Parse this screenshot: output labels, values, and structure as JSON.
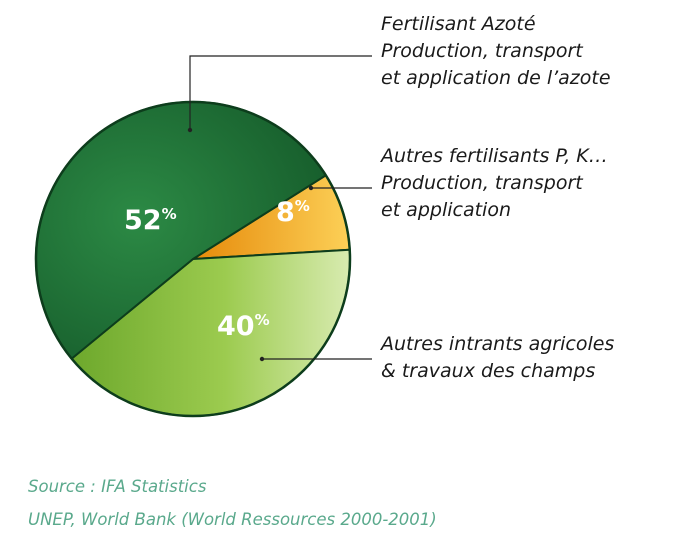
{
  "chart_data": {
    "type": "pie",
    "slices": [
      {
        "value": 52,
        "value_label": "52",
        "pct_sign": "%",
        "color": "#1e6b35",
        "label_lines": [
          "Fertilisant Azoté",
          "Production, transport",
          "et application de l’azote"
        ]
      },
      {
        "value": 8,
        "value_label": "8",
        "pct_sign": "%",
        "color": "#f0a416",
        "label_lines": [
          "Autres fertilisants P, K…",
          "Production, transport",
          "et application"
        ]
      },
      {
        "value": 40,
        "value_label": "40",
        "pct_sign": "%",
        "color": "#8cbd3c",
        "label_lines": [
          "Autres intrants agricoles",
          "& travaux des champs"
        ]
      }
    ]
  },
  "source": {
    "line1": "Source : IFA Statistics",
    "line2": "UNEP, World Bank (World Ressources 2000-2001)"
  }
}
